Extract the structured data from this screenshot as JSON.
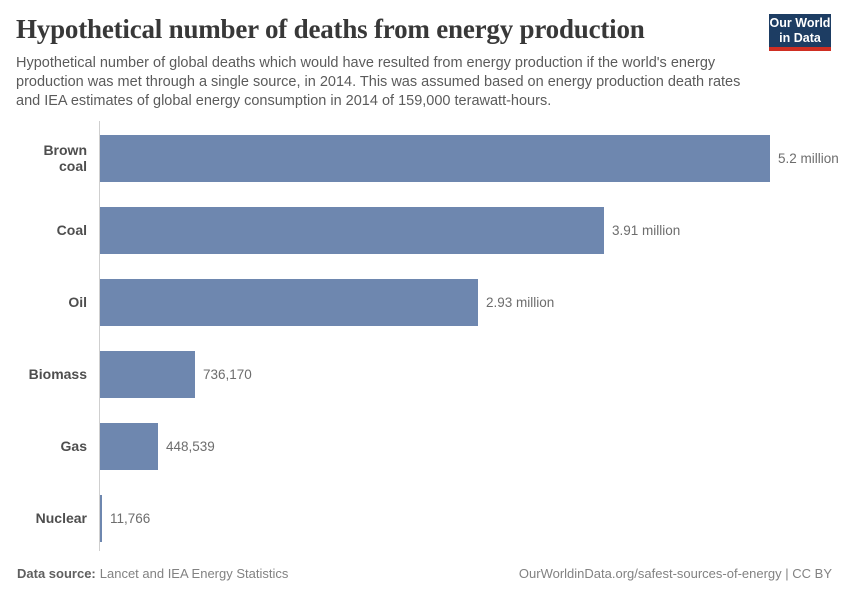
{
  "header": {
    "title": "Hypothetical number of deaths from energy production",
    "subtitle": "Hypothetical number of global deaths which would have resulted from energy production if the world's energy production was met through a single source, in 2014. This was assumed based on energy production death rates and IEA estimates of global energy consumption in 2014 of 159,000 terawatt-hours.",
    "logo": {
      "line1": "Our World",
      "line2": "in Data",
      "bg_color": "#1d3d63",
      "accent_color": "#cf2e22"
    }
  },
  "chart_data": {
    "type": "bar",
    "orientation": "horizontal",
    "title": "Hypothetical number of deaths from energy production",
    "categories": [
      "Brown coal",
      "Coal",
      "Oil",
      "Biomass",
      "Gas",
      "Nuclear"
    ],
    "values": [
      5200000,
      3910000,
      2930000,
      736170,
      448539,
      11766
    ],
    "value_labels": [
      "5.2 million",
      "3.91 million",
      "2.93 million",
      "736,170",
      "448,539",
      "11,766"
    ],
    "xlim": [
      0,
      5200000
    ],
    "unit": "deaths",
    "grid": false,
    "legend": false,
    "bar_color": "#6e87af",
    "axis_color": "#cfcfcf"
  },
  "footer": {
    "datasource_label": "Data source:",
    "datasource_value": "Lancet and IEA Energy Statistics",
    "right_text": "OurWorldinData.org/safest-sources-of-energy | CC BY"
  }
}
